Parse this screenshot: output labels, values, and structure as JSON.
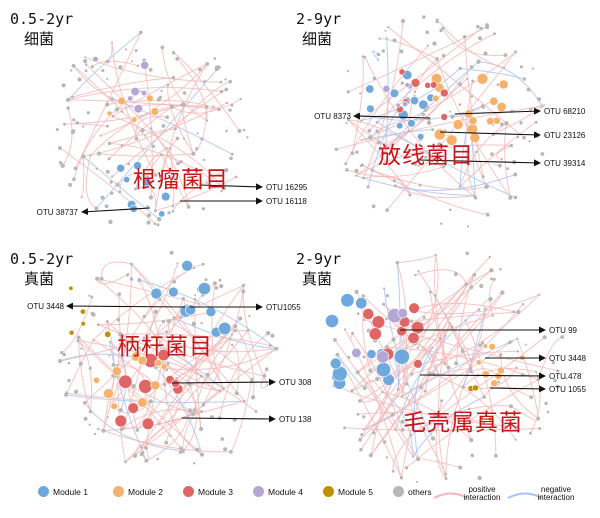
{
  "panels": [
    {
      "age": "0.5-2yr",
      "kingdom": "细菌",
      "group": "根瘤菌目",
      "otus": [
        "OTU 16295",
        "OTU 16118",
        "OTU 38737"
      ]
    },
    {
      "age": "2-9yr",
      "kingdom": "细菌",
      "group": "放线菌目",
      "otus": [
        "OTU 8373",
        "OTU 68210",
        "OTU 23126",
        "OTU 39314"
      ]
    },
    {
      "age": "0.5-2yr",
      "kingdom": "真菌",
      "group": "柄杆菌目",
      "otus": [
        "OTU 3448",
        "OTU1055",
        "OTU 308",
        "OTU 138"
      ]
    },
    {
      "age": "2-9yr",
      "kingdom": "真菌",
      "group": "毛壳属真菌",
      "otus": [
        "OTU 99",
        "OTU 3448",
        "OTU 478",
        "OTU 1055"
      ]
    }
  ],
  "legend": {
    "modules": [
      {
        "label": "Module 1",
        "color": "#6fa8dc"
      },
      {
        "label": "Module 2",
        "color": "#f6b26b"
      },
      {
        "label": "Module 3",
        "color": "#e06666"
      },
      {
        "label": "Module 4",
        "color": "#b4a7d6"
      },
      {
        "label": "Module 5",
        "color": "#bf9000"
      },
      {
        "label": "others",
        "color": "#b7b7b7"
      }
    ],
    "positive": {
      "line1": "positive",
      "line2": "interaction",
      "color": "#f4b6b6"
    },
    "negative": {
      "line1": "negative",
      "line2": "interaction",
      "color": "#a4c2f4"
    }
  }
}
